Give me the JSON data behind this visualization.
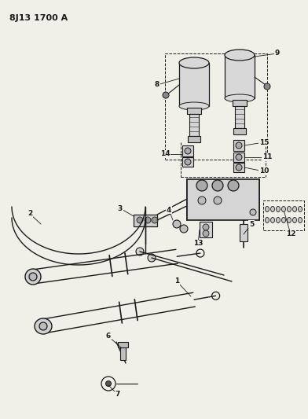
{
  "title": "8J13 1700 A",
  "bg_color": "#f0efe8",
  "line_color": "#1a1a1a",
  "figsize": [
    3.92,
    5.33
  ],
  "dpi": 100
}
